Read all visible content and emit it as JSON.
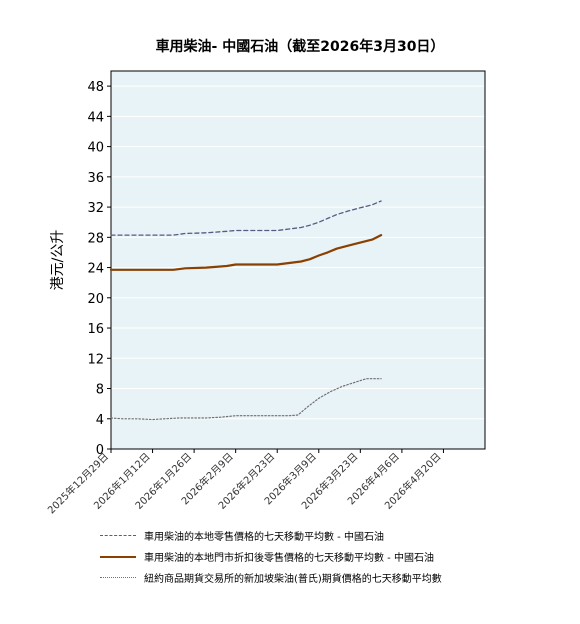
{
  "chart_data": {
    "type": "line",
    "title": "車用柴油- 中國石油（截至2026年3月30日）",
    "ylabel": "港元/公升",
    "xlabel": "",
    "ylim": [
      0,
      50
    ],
    "yticks": [
      0,
      4,
      8,
      12,
      16,
      20,
      24,
      28,
      32,
      36,
      40,
      44,
      48
    ],
    "xticks": [
      "2025年12月29日",
      "2026年1月12日",
      "2026年1月26日",
      "2026年2月9日",
      "2026年2月23日",
      "2026年3月9日",
      "2026年3月23日",
      "2026年4月6日",
      "2026年4月20日"
    ],
    "x_range": [
      "2025-12-29",
      "2026-05-04"
    ],
    "grid": true,
    "legend_position": "bottom",
    "colors": {
      "plot_bg": "#e8f3f8",
      "grid": "#ffffff"
    },
    "series": [
      {
        "name": "車用柴油的本地零售價格的七天移動平均數  - 中國石油",
        "style": "dashed",
        "color": "#5a5a82",
        "points": [
          [
            "2025-12-29",
            28.3
          ],
          [
            "2026-01-05",
            28.3
          ],
          [
            "2026-01-12",
            28.3
          ],
          [
            "2026-01-19",
            28.3
          ],
          [
            "2026-01-23",
            28.5
          ],
          [
            "2026-01-30",
            28.6
          ],
          [
            "2026-02-06",
            28.8
          ],
          [
            "2026-02-09",
            28.9
          ],
          [
            "2026-02-16",
            28.9
          ],
          [
            "2026-02-23",
            28.9
          ],
          [
            "2026-02-27",
            29.1
          ],
          [
            "2026-03-03",
            29.3
          ],
          [
            "2026-03-06",
            29.6
          ],
          [
            "2026-03-09",
            30.0
          ],
          [
            "2026-03-12",
            30.5
          ],
          [
            "2026-03-15",
            31.0
          ],
          [
            "2026-03-19",
            31.5
          ],
          [
            "2026-03-23",
            31.9
          ],
          [
            "2026-03-27",
            32.3
          ],
          [
            "2026-03-30",
            32.8
          ]
        ]
      },
      {
        "name": "車用柴油的本地門市折扣後零售價格的七天移動平均數  - 中國石油",
        "style": "solid",
        "color": "#8b4000",
        "points": [
          [
            "2025-12-29",
            23.7
          ],
          [
            "2026-01-05",
            23.7
          ],
          [
            "2026-01-12",
            23.7
          ],
          [
            "2026-01-19",
            23.7
          ],
          [
            "2026-01-23",
            23.9
          ],
          [
            "2026-01-30",
            24.0
          ],
          [
            "2026-02-06",
            24.2
          ],
          [
            "2026-02-09",
            24.4
          ],
          [
            "2026-02-16",
            24.4
          ],
          [
            "2026-02-23",
            24.4
          ],
          [
            "2026-02-27",
            24.6
          ],
          [
            "2026-03-03",
            24.8
          ],
          [
            "2026-03-06",
            25.1
          ],
          [
            "2026-03-09",
            25.6
          ],
          [
            "2026-03-12",
            26.0
          ],
          [
            "2026-03-15",
            26.5
          ],
          [
            "2026-03-19",
            26.9
          ],
          [
            "2026-03-23",
            27.3
          ],
          [
            "2026-03-27",
            27.7
          ],
          [
            "2026-03-30",
            28.3
          ]
        ]
      },
      {
        "name": "紐約商品期貨交易所的新加坡柴油(普氏)期貨價格的七天移動平均數",
        "style": "dotted",
        "color": "#707070",
        "points": [
          [
            "2025-12-29",
            4.1
          ],
          [
            "2026-01-02",
            4.0
          ],
          [
            "2026-01-07",
            4.0
          ],
          [
            "2026-01-12",
            3.9
          ],
          [
            "2026-01-16",
            4.0
          ],
          [
            "2026-01-21",
            4.1
          ],
          [
            "2026-01-26",
            4.1
          ],
          [
            "2026-01-30",
            4.1
          ],
          [
            "2026-02-04",
            4.2
          ],
          [
            "2026-02-09",
            4.4
          ],
          [
            "2026-02-13",
            4.4
          ],
          [
            "2026-02-18",
            4.4
          ],
          [
            "2026-02-23",
            4.4
          ],
          [
            "2026-02-27",
            4.4
          ],
          [
            "2026-03-02",
            4.5
          ],
          [
            "2026-03-05",
            5.5
          ],
          [
            "2026-03-09",
            6.7
          ],
          [
            "2026-03-13",
            7.6
          ],
          [
            "2026-03-17",
            8.3
          ],
          [
            "2026-03-21",
            8.8
          ],
          [
            "2026-03-25",
            9.3
          ],
          [
            "2026-03-30",
            9.3
          ]
        ]
      }
    ]
  }
}
